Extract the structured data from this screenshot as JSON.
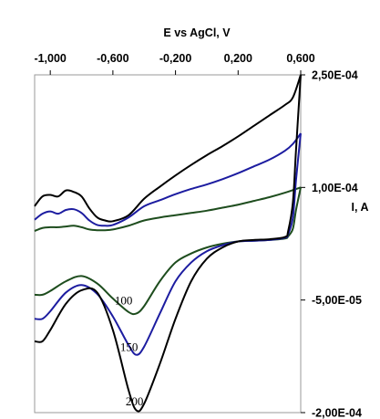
{
  "chart_data": {
    "type": "line",
    "title": "",
    "xlabel": "E vs AgCl, V",
    "ylabel": "I, A",
    "x_axis_position": "top",
    "y_axis_position": "right",
    "xlim": [
      -1.1,
      0.6
    ],
    "ylim": [
      -0.0002,
      0.00025
    ],
    "x_ticks": [
      {
        "value": -1.0,
        "label": "-1,000"
      },
      {
        "value": -0.6,
        "label": "-0,600"
      },
      {
        "value": -0.2,
        "label": "-0,200"
      },
      {
        "value": 0.2,
        "label": "0,200"
      },
      {
        "value": 0.6,
        "label": "0,600"
      }
    ],
    "y_ticks": [
      {
        "value": 0.00025,
        "label": "2,50E-04"
      },
      {
        "value": 0.0001,
        "label": "1,00E-04"
      },
      {
        "value": -5e-05,
        "label": "-5,00E-05"
      },
      {
        "value": -0.0002,
        "label": "-2,00E-04"
      }
    ],
    "grid": false,
    "legend": "none",
    "series": [
      {
        "name": "100",
        "color": "#1e4d1e",
        "forward": [
          [
            -1.1,
            4.2e-05
          ],
          [
            -1.05,
            4.6e-05
          ],
          [
            -1.0,
            4.7e-05
          ],
          [
            -0.95,
            4.7e-05
          ],
          [
            -0.9,
            4.8e-05
          ],
          [
            -0.85,
            4.9e-05
          ],
          [
            -0.8,
            4.7e-05
          ],
          [
            -0.75,
            4.4e-05
          ],
          [
            -0.7,
            4.3e-05
          ],
          [
            -0.65,
            4.3e-05
          ],
          [
            -0.6,
            4.4e-05
          ],
          [
            -0.5,
            4.9e-05
          ],
          [
            -0.4,
            5.6e-05
          ],
          [
            -0.3,
            6e-05
          ],
          [
            -0.2,
            6.3e-05
          ],
          [
            -0.1,
            6.6e-05
          ],
          [
            0.0,
            6.9e-05
          ],
          [
            0.1,
            7.3e-05
          ],
          [
            0.2,
            7.7e-05
          ],
          [
            0.3,
            8.2e-05
          ],
          [
            0.4,
            8.7e-05
          ],
          [
            0.5,
            9.3e-05
          ],
          [
            0.6,
            0.0001
          ]
        ],
        "reverse": [
          [
            0.6,
            0.0001
          ],
          [
            0.57,
            7e-05
          ],
          [
            0.55,
            4.5e-05
          ],
          [
            0.52,
            3.5e-05
          ],
          [
            0.5,
            3.2e-05
          ],
          [
            0.4,
            3e-05
          ],
          [
            0.3,
            2.9e-05
          ],
          [
            0.2,
            2.8e-05
          ],
          [
            0.1,
            2.5e-05
          ],
          [
            0.0,
            2e-05
          ],
          [
            -0.1,
            1.2e-05
          ],
          [
            -0.2,
            0.0
          ],
          [
            -0.3,
            -2.5e-05
          ],
          [
            -0.4,
            -5.8e-05
          ],
          [
            -0.45,
            -6.8e-05
          ],
          [
            -0.5,
            -6.6e-05
          ],
          [
            -0.6,
            -4.8e-05
          ],
          [
            -0.7,
            -2.8e-05
          ],
          [
            -0.8,
            -1.8e-05
          ],
          [
            -0.9,
            -2.5e-05
          ],
          [
            -1.0,
            -3.8e-05
          ],
          [
            -1.05,
            -4.3e-05
          ],
          [
            -1.1,
            -4.3e-05
          ]
        ],
        "label": "100"
      },
      {
        "name": "150",
        "color": "#1c1ca0",
        "forward": [
          [
            -1.1,
            5.7e-05
          ],
          [
            -1.05,
            6.5e-05
          ],
          [
            -1.0,
            6.8e-05
          ],
          [
            -0.95,
            6.5e-05
          ],
          [
            -0.9,
            7e-05
          ],
          [
            -0.85,
            7.1e-05
          ],
          [
            -0.8,
            6.6e-05
          ],
          [
            -0.75,
            5.6e-05
          ],
          [
            -0.7,
            5e-05
          ],
          [
            -0.65,
            4.9e-05
          ],
          [
            -0.6,
            5e-05
          ],
          [
            -0.5,
            6e-05
          ],
          [
            -0.4,
            7.5e-05
          ],
          [
            -0.3,
            8.3e-05
          ],
          [
            -0.2,
            9.1e-05
          ],
          [
            -0.1,
            9.8e-05
          ],
          [
            0.0,
            0.000104
          ],
          [
            0.1,
            0.000111
          ],
          [
            0.2,
            0.000119
          ],
          [
            0.3,
            0.000128
          ],
          [
            0.4,
            0.000137
          ],
          [
            0.5,
            0.000149
          ],
          [
            0.55,
            0.000158
          ],
          [
            0.6,
            0.000172
          ]
        ],
        "reverse": [
          [
            0.6,
            0.000172
          ],
          [
            0.57,
            0.00011
          ],
          [
            0.55,
            6e-05
          ],
          [
            0.52,
            3.8e-05
          ],
          [
            0.5,
            3.3e-05
          ],
          [
            0.4,
            3e-05
          ],
          [
            0.3,
            2.9e-05
          ],
          [
            0.2,
            2.8e-05
          ],
          [
            0.1,
            2.3e-05
          ],
          [
            0.0,
            1.5e-05
          ],
          [
            -0.1,
            0.0
          ],
          [
            -0.2,
            -2.5e-05
          ],
          [
            -0.3,
            -6.8e-05
          ],
          [
            -0.4,
            -0.000112
          ],
          [
            -0.45,
            -0.000123
          ],
          [
            -0.5,
            -0.00011
          ],
          [
            -0.6,
            -7.2e-05
          ],
          [
            -0.7,
            -4.2e-05
          ],
          [
            -0.8,
            -3e-05
          ],
          [
            -0.9,
            -4e-05
          ],
          [
            -1.0,
            -6.5e-05
          ],
          [
            -1.05,
            -7.5e-05
          ],
          [
            -1.1,
            -7.5e-05
          ]
        ],
        "label": "150"
      },
      {
        "name": "200",
        "color": "#000000",
        "forward": [
          [
            -1.1,
            7.5e-05
          ],
          [
            -1.05,
            8.8e-05
          ],
          [
            -1.0,
            9e-05
          ],
          [
            -0.95,
            8.8e-05
          ],
          [
            -0.9,
            9.6e-05
          ],
          [
            -0.85,
            9.4e-05
          ],
          [
            -0.8,
            8.8e-05
          ],
          [
            -0.75,
            7.2e-05
          ],
          [
            -0.7,
            6e-05
          ],
          [
            -0.65,
            5.6e-05
          ],
          [
            -0.6,
            5.5e-05
          ],
          [
            -0.5,
            6.3e-05
          ],
          [
            -0.4,
            8.5e-05
          ],
          [
            -0.3,
            0.000101
          ],
          [
            -0.2,
            0.000116
          ],
          [
            -0.1,
            0.00013
          ],
          [
            0.0,
            0.000143
          ],
          [
            0.1,
            0.000155
          ],
          [
            0.2,
            0.000168
          ],
          [
            0.3,
            0.000182
          ],
          [
            0.4,
            0.000196
          ],
          [
            0.5,
            0.00021
          ],
          [
            0.55,
            0.00022
          ],
          [
            0.6,
            0.00025
          ]
        ],
        "reverse": [
          [
            0.6,
            0.00025
          ],
          [
            0.57,
            0.00015
          ],
          [
            0.55,
            8e-05
          ],
          [
            0.52,
            4.2e-05
          ],
          [
            0.5,
            3.4e-05
          ],
          [
            0.4,
            3.1e-05
          ],
          [
            0.3,
            3e-05
          ],
          [
            0.2,
            2.8e-05
          ],
          [
            0.1,
            2e-05
          ],
          [
            0.0,
            5e-06
          ],
          [
            -0.1,
            -2.5e-05
          ],
          [
            -0.2,
            -7.5e-05
          ],
          [
            -0.3,
            -0.000135
          ],
          [
            -0.4,
            -0.000188
          ],
          [
            -0.45,
            -0.000197
          ],
          [
            -0.5,
            -0.00017
          ],
          [
            -0.6,
            -9e-05
          ],
          [
            -0.7,
            -4e-05
          ],
          [
            -0.8,
            -3.7e-05
          ],
          [
            -0.9,
            -5.5e-05
          ],
          [
            -1.0,
            -9e-05
          ],
          [
            -1.05,
            -0.000105
          ],
          [
            -1.1,
            -0.000105
          ]
        ],
        "label": "200"
      }
    ]
  }
}
